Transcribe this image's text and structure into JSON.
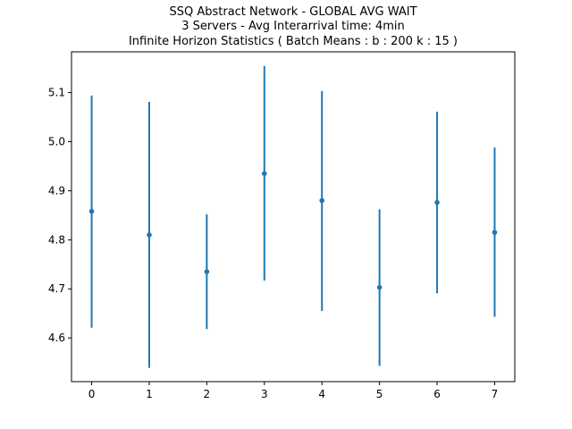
{
  "chart_data": {
    "type": "scatter",
    "title_lines": [
      "SSQ Abstract Network - GLOBAL AVG WAIT",
      "3 Servers -  Avg Interarrival time: 4min",
      "Infinite Horizon Statistics ( Batch Means : b : 200  k : 15 )"
    ],
    "xlabel": "",
    "ylabel": "",
    "x_ticks": [
      "0",
      "1",
      "2",
      "3",
      "4",
      "5",
      "6",
      "7"
    ],
    "y_ticks": [
      "4.6",
      "4.7",
      "4.8",
      "4.9",
      "5.0",
      "5.1"
    ],
    "xlim": [
      -0.35,
      7.35
    ],
    "ylim": [
      4.511,
      5.183
    ],
    "grid": false,
    "color": "#1f77b4",
    "series": [
      {
        "x": [
          0,
          1,
          2,
          3,
          4,
          5,
          6,
          7
        ],
        "y": [
          4.858,
          4.81,
          4.735,
          4.935,
          4.88,
          4.703,
          4.876,
          4.815
        ],
        "err_low": [
          4.621,
          4.539,
          4.618,
          4.717,
          4.655,
          4.543,
          4.691,
          4.643
        ],
        "err_high": [
          5.094,
          5.081,
          4.852,
          5.154,
          5.103,
          4.862,
          5.061,
          4.988
        ]
      }
    ]
  }
}
